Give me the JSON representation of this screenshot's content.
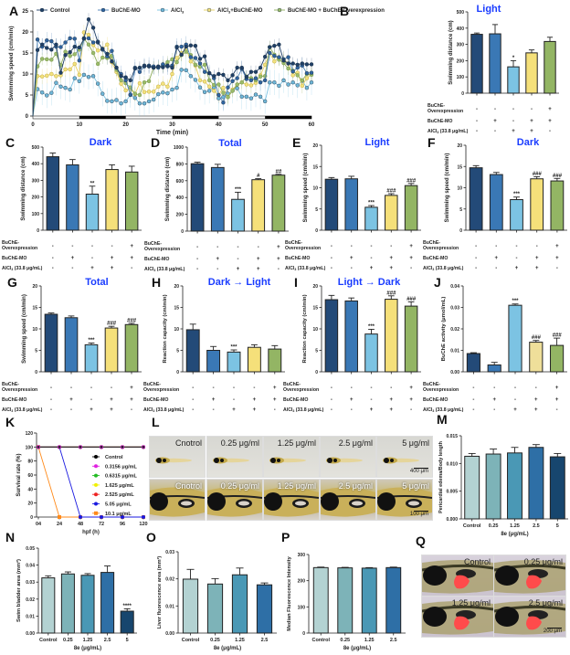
{
  "colors": {
    "control": "#234a78",
    "mo": "#3a78b5",
    "alcl3": "#7cc3e3",
    "alcl3_mo": "#f5e07a",
    "overexp": "#93b564",
    "title_blue": "#1a3cff",
    "teal1": "#b3d2d2",
    "teal2": "#7db3b8",
    "teal3": "#4a98b5",
    "teal4": "#2e6fa6",
    "teal5": "#17466e",
    "j_yellow": "#efdf9a"
  },
  "treatment_rows": {
    "labels": [
      "BuChE-\nOverexpression",
      "BuChE-MO",
      "AlCl3 (33.8 μg/mL)"
    ],
    "overexpression": [
      "-",
      "-",
      "-",
      "-",
      "+"
    ],
    "mo": [
      "-",
      "+",
      "-",
      "+",
      "+"
    ],
    "alcl3": [
      "-",
      "-",
      "+",
      "+",
      "-"
    ]
  },
  "chart_data": [
    {
      "panel": "A",
      "type": "line",
      "title": "",
      "xlabel": "Time (min)",
      "ylabel": "Swimming speed (cm/min)",
      "xlim": [
        0,
        60
      ],
      "ylim": [
        0,
        25
      ],
      "xticks": [
        0,
        10,
        20,
        30,
        40,
        50,
        60
      ],
      "yticks": [
        0,
        5,
        10,
        15,
        20,
        25
      ],
      "legend_position": "top",
      "dark_periods": [
        [
          10,
          20
        ],
        [
          30,
          40
        ],
        [
          50,
          60
        ]
      ],
      "x": [
        1,
        2,
        3,
        4,
        5,
        6,
        7,
        8,
        9,
        10,
        11,
        12,
        13,
        14,
        15,
        16,
        17,
        18,
        19,
        20,
        21,
        22,
        23,
        24,
        25,
        26,
        27,
        28,
        29,
        30,
        31,
        32,
        33,
        34,
        35,
        36,
        37,
        38,
        39,
        40,
        41,
        42,
        43,
        44,
        45,
        46,
        47,
        48,
        49,
        50,
        51,
        52,
        53,
        54,
        55,
        56,
        57,
        58,
        59,
        60
      ],
      "series": [
        {
          "name": "Control",
          "values": [
            15.7,
            17,
            16.2,
            15.8,
            17,
            10.3,
            14.5,
            15.2,
            16.5,
            16.3,
            18.4,
            23,
            21,
            17.5,
            16,
            14.8,
            13,
            11.5,
            9.5,
            9.2,
            8.5,
            11.3,
            11.5,
            12,
            11.8,
            11.5,
            11.8,
            11.6,
            12,
            11.5,
            16.3,
            14.6,
            16.5,
            16.8,
            16.7,
            13.6,
            14.2,
            10.2,
            9.5,
            10,
            9.8,
            8.5,
            9.7,
            11.5,
            11.5,
            9.3,
            10.5,
            10.5,
            11.5,
            14.1,
            16.4,
            16.7,
            17,
            13.2,
            12.5,
            12.5,
            12.2,
            12.5,
            12.3,
            12.3
          ]
        },
        {
          "name": "BuChE-MO",
          "values": [
            18.2,
            16.5,
            18,
            17.8,
            16.5,
            16.4,
            17.5,
            18.5,
            18.4,
            13.2,
            18.5,
            18.5,
            17.5,
            17.7,
            15.8,
            14.2,
            15.5,
            11.5,
            10,
            8.5,
            5.1,
            11.5,
            10.5,
            11.8,
            12,
            11.8,
            11.5,
            12.3,
            11.8,
            12,
            16.5,
            16.5,
            17,
            14,
            13.8,
            12.5,
            10.5,
            10.2,
            9,
            5,
            3.2,
            6.8,
            8.3,
            9,
            11.2,
            8.8,
            8.5,
            9,
            8,
            8.5,
            15,
            14.3,
            14,
            13.5,
            14,
            10.6,
            11.5,
            12,
            10.2,
            10.3
          ]
        },
        {
          "name": "AlCl3",
          "values": [
            6.4,
            5.6,
            4.9,
            5.5,
            7.9,
            7,
            6.7,
            6.3,
            9,
            8.3,
            9.8,
            9.3,
            9.5,
            7.7,
            5.3,
            3.6,
            3.5,
            3.8,
            3,
            3.5,
            5,
            4.3,
            3,
            3,
            3.5,
            3.9,
            5.2,
            5.6,
            5.4,
            6.3,
            6.7,
            11,
            10.9,
            9.5,
            8.6,
            6.8,
            5.7,
            6,
            6.8,
            4.2,
            4.5,
            5.3,
            6,
            6.6,
            4.6,
            4.6,
            4.2,
            5.1,
            4.6,
            3.5,
            8,
            8,
            7.2,
            8.5,
            7.5,
            8,
            7.3,
            8.4,
            6.7,
            8
          ]
        },
        {
          "name": "AlCl3+BuChE-MO",
          "values": [
            9.5,
            9.4,
            9.6,
            10,
            9.5,
            9.7,
            11.1,
            11.1,
            12.4,
            9.8,
            19.9,
            19.3,
            16.9,
            15.6,
            16,
            17,
            12.8,
            10.5,
            7.7,
            6.1,
            6.4,
            5.2,
            7.8,
            5.7,
            5.8,
            5.8,
            7,
            7.7,
            7,
            10,
            13.8,
            15,
            16,
            13,
            12,
            8.5,
            8.2,
            7,
            6,
            5,
            6.7,
            4.5,
            6.3,
            7.5,
            8,
            7.5,
            7.3,
            7.9,
            9.7,
            12.2,
            15,
            13,
            14,
            13.5,
            12.5,
            9.7,
            10.3,
            7.2,
            9,
            10
          ]
        },
        {
          "name": "BuChE-MO + BuChE-Overexpression",
          "values": [
            11.8,
            13.6,
            13.5,
            13.4,
            14.8,
            12.1,
            15.3,
            14.3,
            14.7,
            15.8,
            18.4,
            17,
            15,
            12.4,
            13.9,
            13.8,
            14.3,
            11,
            8.5,
            7.8,
            6.8,
            5.3,
            5,
            8,
            8.3,
            11.5,
            11.6,
            11.9,
            12.8,
            13.5,
            12.8,
            14.5,
            15.3,
            14.5,
            12.2,
            11.7,
            12.2,
            8.5,
            7.4,
            7.5,
            5.5,
            4.5,
            6,
            7.5,
            8,
            9.4,
            9,
            8.5,
            9.4,
            9.5,
            16.4,
            14.6,
            13.4,
            12.6,
            11.3,
            10.8,
            9.7,
            8.5,
            10,
            9.8
          ]
        }
      ]
    },
    {
      "panel": "B",
      "type": "bar",
      "title": "Light",
      "ylabel": "Swimming distance (cm)",
      "ylim": [
        0,
        500
      ],
      "yticks": [
        0,
        100,
        200,
        300,
        400,
        500
      ],
      "values": [
        362,
        365,
        162,
        248,
        318
      ],
      "errors": [
        8,
        57,
        38,
        18,
        26
      ],
      "annotations": [
        "",
        "",
        "*",
        "",
        ""
      ]
    },
    {
      "panel": "C",
      "type": "bar",
      "title": "Dark",
      "ylabel": "Swimming distance (cm)",
      "ylim": [
        0,
        500
      ],
      "yticks": [
        0,
        100,
        200,
        300,
        400,
        500
      ],
      "values": [
        442,
        393,
        217,
        365,
        350
      ],
      "errors": [
        22,
        32,
        48,
        28,
        35
      ],
      "annotations": [
        "",
        "",
        "**",
        "",
        ""
      ]
    },
    {
      "panel": "D",
      "type": "bar",
      "title": "Total",
      "ylabel": "Swimming distance (cm)",
      "ylim": [
        0,
        1000
      ],
      "yticks": [
        0,
        200,
        400,
        600,
        800,
        1000
      ],
      "values": [
        802,
        757,
        378,
        612,
        666
      ],
      "errors": [
        18,
        38,
        85,
        12,
        10
      ],
      "annotations": [
        "",
        "",
        "***",
        "#",
        "##"
      ]
    },
    {
      "panel": "E",
      "type": "bar",
      "title": "Light",
      "ylabel": "Swimming speed (cm/min)",
      "ylim": [
        0,
        20
      ],
      "yticks": [
        0,
        5,
        10,
        15,
        20
      ],
      "values": [
        12.0,
        12.1,
        5.4,
        8.2,
        10.5
      ],
      "errors": [
        0.4,
        0.6,
        0.4,
        0.4,
        0.5
      ],
      "annotations": [
        "",
        "",
        "***",
        "###",
        "###"
      ]
    },
    {
      "panel": "F",
      "type": "bar",
      "title": "Dark",
      "ylabel": "Swimming speed (cm/min)",
      "ylim": [
        0,
        20
      ],
      "yticks": [
        0,
        5,
        10,
        15,
        20
      ],
      "values": [
        14.7,
        13.1,
        7.2,
        12.1,
        11.6
      ],
      "errors": [
        0.5,
        0.5,
        0.6,
        0.5,
        0.6
      ],
      "annotations": [
        "",
        "",
        "***",
        "###",
        "###"
      ]
    },
    {
      "panel": "G",
      "type": "bar",
      "title": "Total",
      "ylabel": "Swimming speed (cm/min)",
      "ylim": [
        0,
        20
      ],
      "yticks": [
        0,
        5,
        10,
        15,
        20
      ],
      "values": [
        13.4,
        12.6,
        6.3,
        10.2,
        11.0
      ],
      "errors": [
        0.3,
        0.4,
        0.4,
        0.4,
        0.3
      ],
      "annotations": [
        "",
        "",
        "***",
        "###",
        "###"
      ]
    },
    {
      "panel": "H",
      "type": "bar",
      "title": "Dark → Light",
      "ylabel": "Reaction capacity (cm/min)",
      "ylim": [
        0,
        20
      ],
      "yticks": [
        0,
        5,
        10,
        15,
        20
      ],
      "values": [
        9.8,
        5.0,
        4.6,
        5.7,
        5.3
      ],
      "errors": [
        1.3,
        0.9,
        0.5,
        0.6,
        0.8
      ],
      "annotations": [
        "",
        "",
        "***",
        "",
        ""
      ]
    },
    {
      "panel": "I",
      "type": "bar",
      "title": "Light → Dark",
      "ylabel": "Reaction capacity (cm/min)",
      "ylim": [
        0,
        20
      ],
      "yticks": [
        0,
        5,
        10,
        15,
        20
      ],
      "values": [
        16.8,
        16.5,
        8.8,
        16.9,
        15.3
      ],
      "errors": [
        1.0,
        0.7,
        1.1,
        0.8,
        1.0
      ],
      "annotations": [
        "",
        "",
        "***",
        "###",
        "###"
      ]
    },
    {
      "panel": "J",
      "type": "bar",
      "title": "",
      "ylabel": "BuChE activity (μmol/mL)",
      "ylim": [
        0,
        0.04
      ],
      "yticks": [
        "0.00",
        "0.01",
        "0.02",
        "0.03",
        "0.04"
      ],
      "values": [
        0.0085,
        0.0032,
        0.031,
        0.0138,
        0.0123
      ],
      "errors": [
        0.0004,
        0.0012,
        0.0006,
        0.0008,
        0.0034
      ],
      "annotations": [
        "",
        "",
        "***",
        "###",
        "###"
      ]
    },
    {
      "panel": "K",
      "type": "line",
      "xlabel": "hpf (h)",
      "ylabel": "Survival rate (%)",
      "xlim": [
        4,
        120
      ],
      "ylim": [
        0,
        120
      ],
      "xticks": [
        "04",
        "24",
        "48",
        "72",
        "96",
        "120"
      ],
      "yticks": [
        0,
        20,
        40,
        60,
        80,
        100,
        120
      ],
      "legend_position": "center-right",
      "x": [
        4,
        24,
        48,
        72,
        96,
        120
      ],
      "series": [
        {
          "name": "Control",
          "color": "#000000",
          "values": [
            100,
            100,
            100,
            100,
            100,
            100
          ]
        },
        {
          "name": "0.3156 μg/mL",
          "color": "#e020e0",
          "values": [
            100,
            100,
            100,
            100,
            100,
            100
          ]
        },
        {
          "name": "0.6315 μg/mL",
          "color": "#22bb22",
          "values": [
            100,
            100,
            100,
            100,
            100,
            100
          ]
        },
        {
          "name": "1.625 μg/mL",
          "color": "#f0f000",
          "values": [
            100,
            100,
            100,
            100,
            100,
            100
          ]
        },
        {
          "name": "2.525 μg/mL",
          "color": "#ee2222",
          "values": [
            100,
            100,
            100,
            100,
            100,
            100
          ]
        },
        {
          "name": "5.05 μg/mL",
          "color": "#1a1ae0",
          "values": [
            100,
            100,
            0,
            0,
            0,
            0
          ]
        },
        {
          "name": "10.1 μg/mL",
          "color": "#ff8a1a",
          "values": [
            100,
            0,
            0,
            0,
            0,
            0
          ]
        }
      ]
    },
    {
      "panel": "M",
      "type": "bar",
      "title": "",
      "xlabel": "8e (μg/mL)",
      "ylabel": "Pericardial edema/Body length",
      "ylim": [
        0,
        0.015
      ],
      "yticks": [
        "0.000",
        "0.005",
        "0.010",
        "0.015"
      ],
      "categories": [
        "Control",
        "0.25",
        "1.25",
        "2.5",
        "5"
      ],
      "values": [
        0.0113,
        0.0117,
        0.0119,
        0.0129,
        0.0112
      ],
      "errors": [
        0.0005,
        0.0009,
        0.001,
        0.0005,
        0.0006
      ],
      "annotations": [
        "",
        "",
        "",
        "",
        ""
      ]
    },
    {
      "panel": "N",
      "type": "bar",
      "title": "",
      "xlabel": "8e (μg/mL)",
      "ylabel": "Swim bladder area (mm²)",
      "ylim": [
        0,
        0.05
      ],
      "yticks": [
        "0.00",
        "0.01",
        "0.02",
        "0.03",
        "0.04",
        "0.05"
      ],
      "categories": [
        "Control",
        "0.25",
        "1.25",
        "2.5",
        "5"
      ],
      "values": [
        0.0325,
        0.0348,
        0.034,
        0.0357,
        0.0129
      ],
      "errors": [
        0.0012,
        0.0012,
        0.001,
        0.0038,
        0.0014
      ],
      "annotations": [
        "",
        "",
        "",
        "",
        "****"
      ]
    },
    {
      "panel": "O",
      "type": "bar",
      "title": "",
      "xlabel": "8e (μg/mL)",
      "ylabel": "Liver fluorescence area (mm²)",
      "ylim": [
        0,
        0.03
      ],
      "yticks": [
        "0.00",
        "0.01",
        "0.02",
        "0.03"
      ],
      "categories": [
        "Control",
        "0.25",
        "1.25",
        "2.5"
      ],
      "values": [
        0.0199,
        0.0181,
        0.0215,
        0.0178
      ],
      "errors": [
        0.0036,
        0.002,
        0.0025,
        0.0007
      ],
      "annotations": [
        "",
        "",
        "",
        ""
      ]
    },
    {
      "panel": "P",
      "type": "bar",
      "title": "",
      "xlabel": "8e (μg/mL)",
      "ylabel": "Median Fluorescence Intensity",
      "ylim": [
        0,
        300
      ],
      "yticks": [
        "0",
        "100",
        "200",
        "300"
      ],
      "categories": [
        "Control",
        "0.25",
        "1.25",
        "2.5"
      ],
      "values": [
        250,
        249,
        248,
        250
      ],
      "errors": [
        2,
        2,
        2,
        2
      ],
      "annotations": [
        "",
        "",
        "",
        ""
      ]
    }
  ],
  "panel_L": {
    "labels_top": [
      "Cnotrol",
      "0.25 μg/ml",
      "1.25 μg/ml",
      "2.5 μg/ml",
      "5 μg/ml"
    ],
    "labels_bottom": [
      "Cnotrol",
      "0.25 μg/ml",
      "1.25 μg/ml",
      "2.5 μg/ml",
      "5 μg/ml"
    ],
    "scale_top": "400 μm",
    "scale_bottom": "100 μm"
  },
  "panel_Q": {
    "labels": [
      "Control",
      "0.25 μg/ml",
      "1.25 μg/ml",
      "2.5 μg/ml"
    ],
    "scale": "200 μm"
  }
}
